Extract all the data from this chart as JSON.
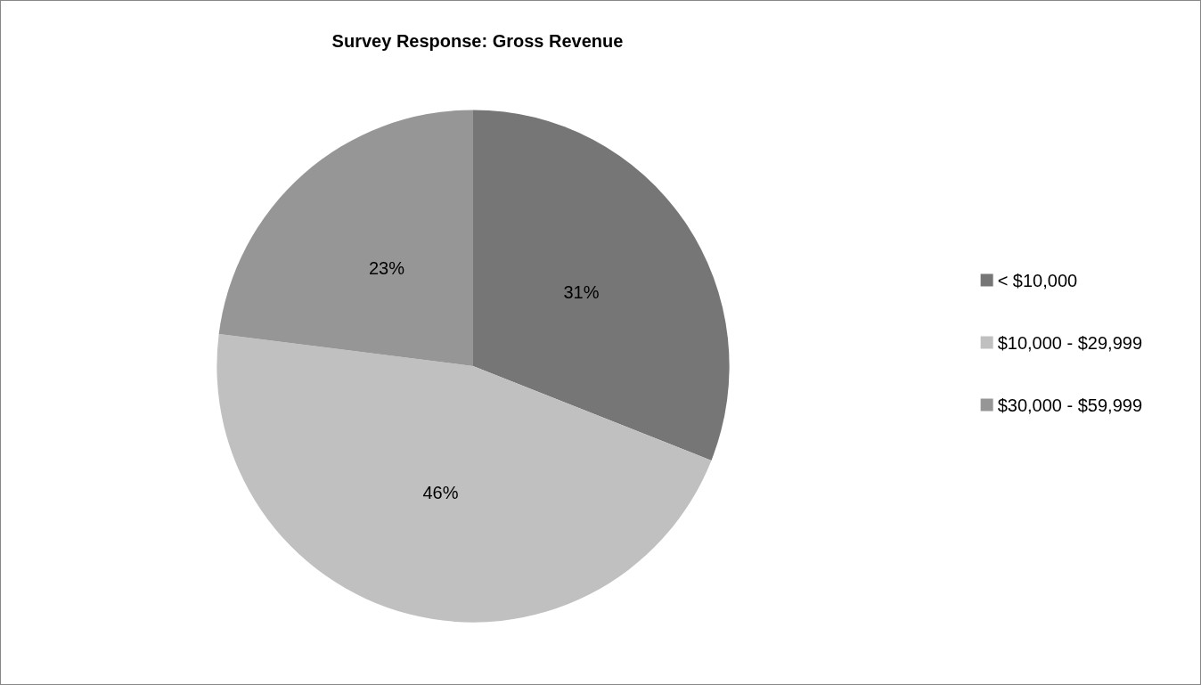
{
  "chart_data": {
    "type": "pie",
    "title": "Survey Response: Gross Revenue",
    "categories": [
      "< $10,000",
      "$10,000 - $29,999",
      "$30,000 - $59,999"
    ],
    "values": [
      31,
      46,
      23
    ],
    "colors": [
      "#767676",
      "#c0c0c0",
      "#969696"
    ],
    "value_labels": [
      "31%",
      "46%",
      "23%"
    ],
    "legend": "right"
  }
}
